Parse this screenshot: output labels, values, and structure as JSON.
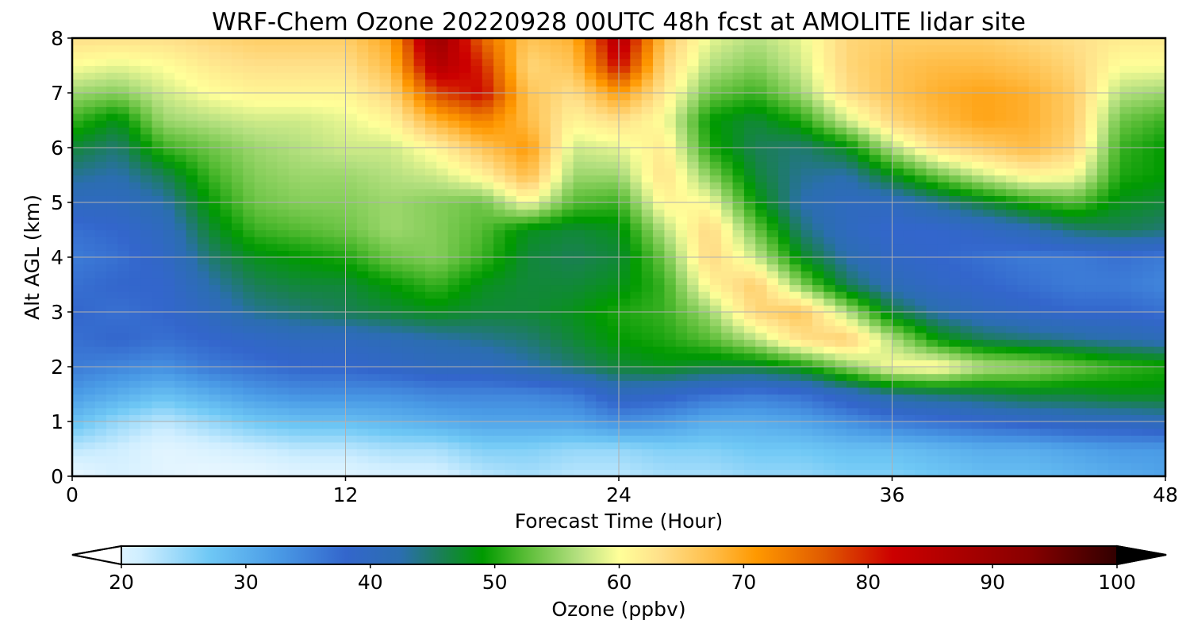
{
  "chart_data": {
    "type": "heatmap",
    "title": "WRF-Chem Ozone  20220928 00UTC 48h fcst at AMOLITE lidar site",
    "xlabel": "Forecast Time (Hour)",
    "ylabel": "Alt AGL (km)",
    "xlim": [
      0,
      48
    ],
    "ylim": [
      0,
      8
    ],
    "x_ticks": [
      "0",
      "12",
      "24",
      "36",
      "48"
    ],
    "y_ticks": [
      "0",
      "1",
      "2",
      "3",
      "4",
      "5",
      "6",
      "7",
      "8"
    ],
    "grid": true,
    "x": [
      0,
      2,
      4,
      6,
      8,
      10,
      12,
      14,
      16,
      18,
      20,
      22,
      24,
      26,
      28,
      30,
      32,
      34,
      36,
      38,
      40,
      42,
      44,
      46,
      48
    ],
    "y": [
      0,
      0.5,
      1,
      1.5,
      2,
      2.5,
      3,
      3.5,
      4,
      4.5,
      5,
      5.5,
      6,
      6.5,
      7,
      7.5,
      8
    ],
    "z": [
      [
        22,
        24,
        23,
        22,
        22,
        23,
        23,
        24,
        24,
        26,
        27,
        26,
        26,
        27,
        27,
        28,
        28,
        29,
        29,
        30,
        31,
        31,
        32,
        33,
        34
      ],
      [
        26,
        25,
        23,
        24,
        25,
        26,
        26,
        27,
        27,
        29,
        29,
        28,
        28,
        29,
        29,
        30,
        30,
        31,
        31,
        32,
        33,
        33,
        34,
        35,
        35
      ],
      [
        31,
        28,
        26,
        28,
        30,
        31,
        31,
        32,
        33,
        34,
        34,
        34,
        36,
        35,
        33,
        33,
        34,
        36,
        38,
        39,
        40,
        41,
        42,
        42,
        43
      ],
      [
        35,
        33,
        31,
        33,
        35,
        36,
        36,
        36,
        37,
        37,
        37,
        38,
        42,
        41,
        39,
        38,
        39,
        42,
        45,
        46,
        47,
        48,
        48,
        49,
        49
      ],
      [
        38,
        37,
        36,
        38,
        39,
        40,
        40,
        41,
        42,
        42,
        44,
        46,
        48,
        49,
        48,
        48,
        50,
        55,
        60,
        61,
        57,
        56,
        54,
        52,
        51
      ],
      [
        39,
        40,
        39,
        40,
        41,
        42,
        42,
        43,
        44,
        45,
        46,
        48,
        50,
        51,
        53,
        57,
        63,
        65,
        57,
        50,
        47,
        46,
        45,
        44,
        43
      ],
      [
        40,
        39,
        40,
        42,
        45,
        46,
        47,
        48,
        49,
        48,
        48,
        49,
        51,
        52,
        56,
        64,
        66,
        57,
        48,
        44,
        42,
        41,
        40,
        40,
        39
      ],
      [
        39,
        40,
        40,
        44,
        47,
        48,
        48,
        50,
        52,
        49,
        48,
        48,
        49,
        52,
        61,
        65,
        55,
        47,
        43,
        41,
        40,
        39,
        38,
        38,
        37
      ],
      [
        38,
        39,
        41,
        46,
        49,
        50,
        51,
        54,
        55,
        52,
        48,
        47,
        48,
        54,
        64,
        58,
        49,
        44,
        41,
        40,
        39,
        38,
        38,
        39,
        38
      ],
      [
        39,
        40,
        42,
        48,
        52,
        53,
        54,
        56,
        55,
        53,
        49,
        48,
        49,
        57,
        64,
        54,
        46,
        42,
        40,
        40,
        41,
        43,
        46,
        47,
        46
      ],
      [
        42,
        42,
        44,
        50,
        54,
        55,
        55,
        56,
        55,
        54,
        60,
        53,
        52,
        61,
        60,
        50,
        44,
        42,
        42,
        45,
        48,
        51,
        53,
        49,
        48
      ],
      [
        45,
        44,
        47,
        52,
        55,
        56,
        56,
        57,
        58,
        61,
        67,
        56,
        56,
        63,
        55,
        48,
        45,
        44,
        49,
        54,
        58,
        61,
        60,
        51,
        50
      ],
      [
        48,
        46,
        52,
        54,
        56,
        57,
        58,
        58,
        61,
        66,
        70,
        58,
        59,
        62,
        51,
        47,
        46,
        49,
        57,
        63,
        65,
        67,
        64,
        52,
        50
      ],
      [
        52,
        49,
        56,
        57,
        58,
        58,
        59,
        61,
        68,
        72,
        67,
        61,
        63,
        60,
        50,
        48,
        51,
        58,
        64,
        67,
        69,
        68,
        65,
        54,
        52
      ],
      [
        56,
        55,
        58,
        60,
        61,
        61,
        61,
        64,
        76,
        80,
        66,
        63,
        70,
        62,
        54,
        52,
        56,
        63,
        66,
        68,
        69,
        68,
        65,
        57,
        56
      ],
      [
        60,
        59,
        60,
        62,
        63,
        63,
        63,
        67,
        84,
        78,
        64,
        66,
        80,
        64,
        57,
        55,
        58,
        64,
        66,
        67,
        67,
        66,
        64,
        60,
        60
      ],
      [
        63,
        63,
        63,
        64,
        65,
        65,
        65,
        69,
        88,
        74,
        66,
        68,
        84,
        66,
        59,
        57,
        59,
        64,
        65,
        65,
        65,
        64,
        63,
        62,
        62
      ]
    ],
    "colorbar": {
      "label": "Ozone  (ppbv)",
      "min": 20,
      "max": 100,
      "ticks": [
        "20",
        "30",
        "40",
        "50",
        "60",
        "70",
        "80",
        "90",
        "100"
      ],
      "extend": "both",
      "colors": [
        {
          "v": 20,
          "c": "#ffffff"
        },
        {
          "v": 25,
          "c": "#cfeeff"
        },
        {
          "v": 30,
          "c": "#6fc8f5"
        },
        {
          "v": 35,
          "c": "#4a9be6"
        },
        {
          "v": 40,
          "c": "#3366cc"
        },
        {
          "v": 44,
          "c": "#2b6eb0"
        },
        {
          "v": 47,
          "c": "#1a7f55"
        },
        {
          "v": 50,
          "c": "#009a00"
        },
        {
          "v": 53,
          "c": "#55bb33"
        },
        {
          "v": 57,
          "c": "#b5e080"
        },
        {
          "v": 60,
          "c": "#ffff99"
        },
        {
          "v": 63,
          "c": "#ffe08a"
        },
        {
          "v": 67,
          "c": "#ffbb44"
        },
        {
          "v": 70,
          "c": "#ff9900"
        },
        {
          "v": 75,
          "c": "#e05a00"
        },
        {
          "v": 80,
          "c": "#cc0000"
        },
        {
          "v": 90,
          "c": "#880000"
        },
        {
          "v": 100,
          "c": "#000000"
        }
      ]
    }
  }
}
